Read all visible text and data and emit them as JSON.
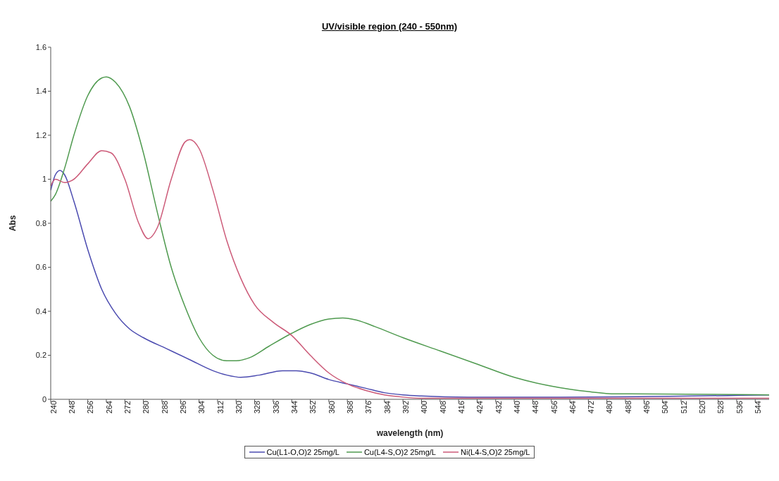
{
  "chart_data": {
    "type": "line",
    "title": "UV/visible region (240 - 550nm)",
    "xlabel": "wavelength (nm)",
    "ylabel": "Abs",
    "xlim": [
      240,
      550
    ],
    "xticks": [
      240,
      248,
      256,
      264,
      272,
      280,
      288,
      296,
      304,
      312,
      320,
      328,
      336,
      344,
      352,
      360,
      368,
      376,
      384,
      392,
      400,
      408,
      416,
      424,
      432,
      440,
      448,
      456,
      464,
      472,
      480,
      488,
      496,
      504,
      512,
      520,
      528,
      536,
      544
    ],
    "ylim": [
      0,
      1.6
    ],
    "yticks": [
      0,
      0.2,
      0.4,
      0.6,
      0.8,
      1,
      1.2,
      1.4,
      1.6
    ],
    "legend": "bottom",
    "marker": "none",
    "line_style": "solid",
    "series": [
      {
        "name": "Cu(L1-O,O)2 25mg/L",
        "color": "#4b4bb0",
        "x": [
          240,
          242,
          244,
          246,
          250,
          256,
          262,
          268,
          274,
          280,
          290,
          300,
          310,
          316,
          322,
          330,
          340,
          346,
          352,
          360,
          368,
          376,
          384,
          392,
          400,
          420,
          460,
          550
        ],
        "values": [
          0.95,
          1.02,
          1.04,
          1.02,
          0.9,
          0.68,
          0.5,
          0.39,
          0.32,
          0.28,
          0.23,
          0.18,
          0.13,
          0.11,
          0.1,
          0.11,
          0.13,
          0.13,
          0.12,
          0.09,
          0.07,
          0.05,
          0.03,
          0.02,
          0.015,
          0.01,
          0.01,
          0.02
        ]
      },
      {
        "name": "Cu(L4-S,O)2 25mg/L",
        "color": "#4f9a4f",
        "x": [
          240,
          242,
          246,
          250,
          256,
          262,
          264,
          268,
          274,
          280,
          286,
          292,
          298,
          304,
          310,
          316,
          320,
          326,
          334,
          344,
          352,
          360,
          366,
          372,
          380,
          392,
          408,
          424,
          440,
          456,
          472,
          484,
          490,
          550
        ],
        "values": [
          0.9,
          0.93,
          1.05,
          1.2,
          1.38,
          1.46,
          1.465,
          1.44,
          1.33,
          1.12,
          0.85,
          0.6,
          0.42,
          0.28,
          0.2,
          0.175,
          0.175,
          0.19,
          0.24,
          0.3,
          0.34,
          0.365,
          0.37,
          0.36,
          0.33,
          0.28,
          0.22,
          0.16,
          0.1,
          0.06,
          0.035,
          0.025,
          0.025,
          0.02
        ]
      },
      {
        "name": "Ni(L4-S,O)2 25mg/L",
        "color": "#cc5a78",
        "x": [
          240,
          242,
          246,
          250,
          256,
          262,
          266,
          272,
          278,
          282,
          286,
          292,
          298,
          300,
          304,
          310,
          316,
          322,
          328,
          336,
          344,
          352,
          360,
          368,
          376,
          384,
          392,
          400,
          450,
          550
        ],
        "values": [
          0.97,
          1.0,
          0.985,
          1.0,
          1.07,
          1.13,
          1.12,
          1.0,
          0.8,
          0.73,
          0.78,
          1.0,
          1.17,
          1.18,
          1.14,
          0.95,
          0.72,
          0.55,
          0.43,
          0.35,
          0.29,
          0.2,
          0.12,
          0.07,
          0.04,
          0.02,
          0.01,
          0.005,
          0.005,
          0.005
        ]
      }
    ]
  }
}
